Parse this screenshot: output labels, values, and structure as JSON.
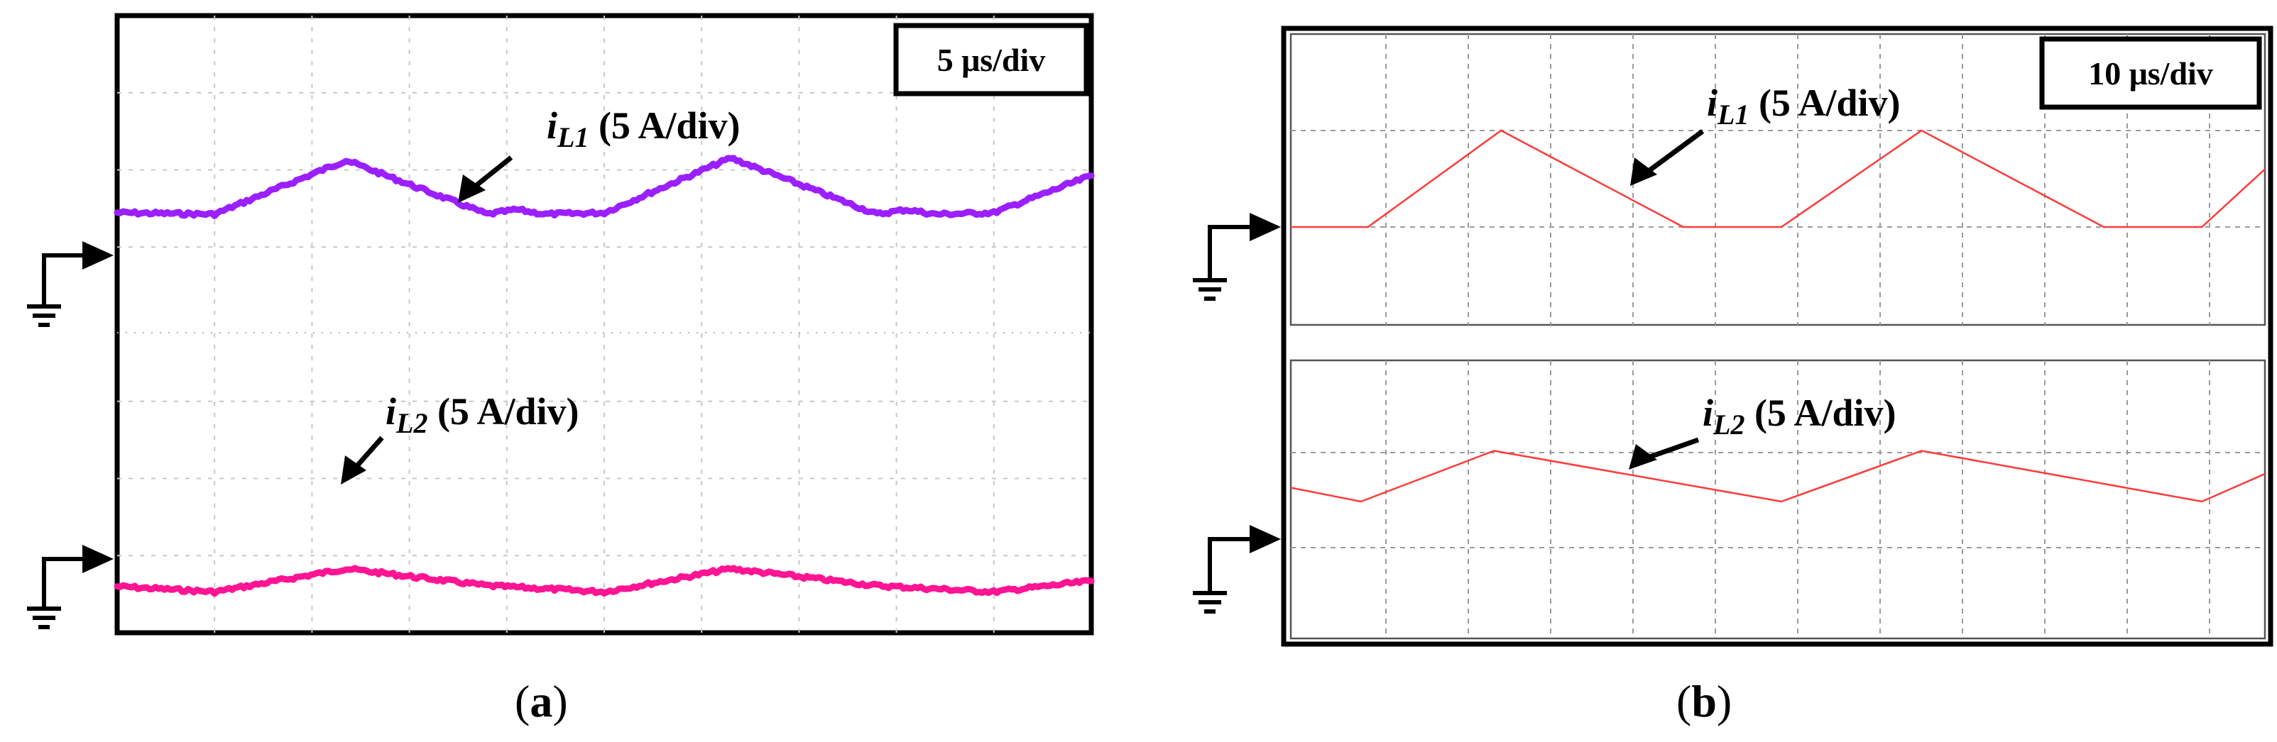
{
  "chart_data": [
    {
      "type": "line",
      "panel": "(a)",
      "caption": "(a)",
      "timebase": "5 μs/div",
      "grid_divisions": {
        "x": 10,
        "y": 8
      },
      "series": [
        {
          "name": "iL1",
          "label_main": "i",
          "label_sub": "L1",
          "label_scale": " (5 A/div)",
          "color": "#9b1fff",
          "ground_level_div": 1.55,
          "x_div": [
            0,
            1,
            2.35,
            3.8,
            4.1,
            4.4,
            5.0,
            6.3,
            7.8,
            8.1,
            8.4,
            9.0,
            10.0
          ],
          "y_div": [
            0.02,
            0.0,
            0.7,
            0.0,
            0.06,
            0.0,
            0.02,
            0.73,
            0.0,
            0.06,
            0.0,
            0.02,
            0.5
          ]
        },
        {
          "name": "iL2",
          "label_main": "i",
          "label_sub": "L2",
          "label_scale": " (5 A/div)",
          "color": "#ff1493",
          "ground_level_div": 0.55,
          "x_div": [
            0,
            1,
            2.35,
            3.8,
            4.1,
            5.0,
            6.3,
            7.8,
            8.1,
            9.0,
            10.0
          ],
          "y_div": [
            0.05,
            -0.02,
            0.28,
            0.06,
            0.04,
            -0.02,
            0.28,
            0.06,
            0.04,
            -0.02,
            0.12
          ]
        }
      ]
    },
    {
      "type": "line",
      "panel": "(b)",
      "caption": "(b)",
      "timebase": "10 μs/div",
      "grid_divisions": {
        "x": 12,
        "top_y": 3,
        "bottom_y": 3
      },
      "series": [
        {
          "name": "iL1",
          "label_main": "i",
          "label_sub": "L1",
          "label_scale": " (5 A/div)",
          "color": "#ff3a3a",
          "ground_level_div": 1.0,
          "x_div": [
            0,
            1.1,
            3.0,
            5.6,
            7.0,
            9.0,
            11.6,
            13.0,
            13.9
          ],
          "y_div": [
            0,
            0,
            1.0,
            0,
            0,
            1.0,
            0,
            0,
            0.6
          ]
        },
        {
          "name": "iL2",
          "label_main": "i",
          "label_sub": "L2",
          "label_scale": " (5 A/div)",
          "color": "#ff3a3a",
          "ground_level_div": 1.0,
          "x_div": [
            0,
            1.0,
            2.9,
            7.0,
            9.0,
            13.0,
            13.9
          ],
          "y_div": [
            0.45,
            0.3,
            0.85,
            0.3,
            0.85,
            0.3,
            0.6
          ]
        }
      ]
    }
  ]
}
